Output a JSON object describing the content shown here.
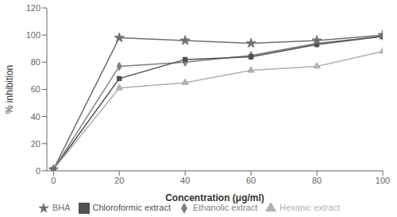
{
  "chart_data": {
    "type": "line",
    "x": [
      0,
      20,
      40,
      60,
      80,
      100
    ],
    "xlabel": "Concentration (μg/ml)",
    "ylabel": "% inhibition",
    "xlim": [
      -2,
      100
    ],
    "ylim": [
      0,
      120
    ],
    "xticks": [
      0,
      20,
      40,
      60,
      80,
      100
    ],
    "yticks": [
      0,
      20,
      40,
      60,
      80,
      100,
      120
    ],
    "grid": false,
    "legend": "bottom",
    "series": [
      {
        "name": "Ethanolic extract",
        "color": "#808080",
        "marker": "diamond",
        "values": [
          1,
          77,
          80,
          85,
          94,
          99
        ]
      },
      {
        "name": "Chloroformic extract",
        "color": "#505050",
        "marker": "square",
        "values": [
          1,
          68,
          82,
          84,
          93,
          99
        ]
      },
      {
        "name": "Hexanic extract",
        "color": "#b0b0b0",
        "marker": "triangle",
        "values": [
          1,
          61,
          65,
          74,
          77,
          88
        ]
      },
      {
        "name": "BHA",
        "color": "#707070",
        "marker": "star",
        "values": [
          1,
          98,
          96,
          94,
          96,
          100
        ]
      }
    ]
  }
}
